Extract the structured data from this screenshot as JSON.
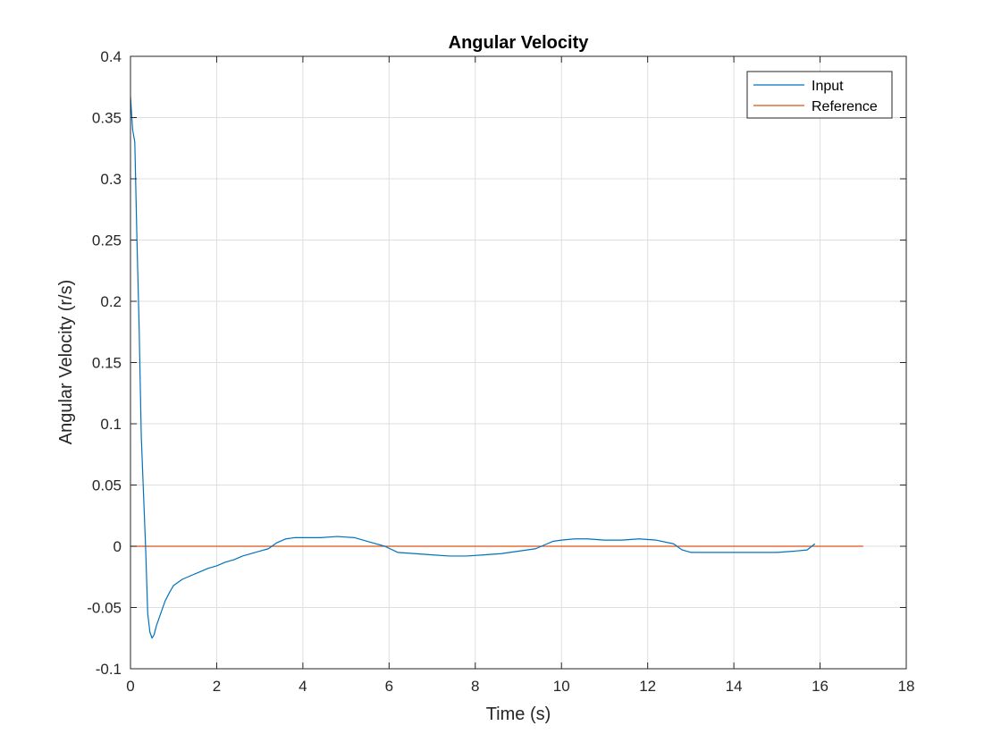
{
  "chart_data": {
    "type": "line",
    "title": "Angular Velocity",
    "xlabel": "Time (s)",
    "ylabel": "Angular Velocity (r/s)",
    "xlim": [
      0,
      18
    ],
    "ylim": [
      -0.1,
      0.4
    ],
    "xticks": [
      0,
      2,
      4,
      6,
      8,
      10,
      12,
      14,
      16,
      18
    ],
    "xtick_labels": [
      "0",
      "2",
      "4",
      "6",
      "8",
      "10",
      "12",
      "14",
      "16",
      "18"
    ],
    "yticks": [
      -0.1,
      -0.05,
      0,
      0.05,
      0.1,
      0.15,
      0.2,
      0.25,
      0.3,
      0.35,
      0.4
    ],
    "ytick_labels": [
      "-0.1",
      "-0.05",
      "0",
      "0.05",
      "0.1",
      "0.15",
      "0.2",
      "0.25",
      "0.3",
      "0.35",
      "0.4"
    ],
    "grid": true,
    "legend_position": "top-right",
    "series": [
      {
        "name": "Input",
        "color": "#0072BD",
        "x": [
          0,
          0.05,
          0.1,
          0.15,
          0.2,
          0.25,
          0.3,
          0.35,
          0.4,
          0.45,
          0.5,
          0.55,
          0.6,
          0.7,
          0.8,
          0.9,
          1.0,
          1.2,
          1.4,
          1.6,
          1.8,
          2.0,
          2.2,
          2.4,
          2.6,
          2.8,
          3.0,
          3.2,
          3.4,
          3.6,
          3.8,
          4.0,
          4.4,
          4.8,
          5.2,
          5.6,
          5.9,
          6.2,
          6.6,
          7.0,
          7.4,
          7.8,
          8.2,
          8.6,
          9.0,
          9.4,
          9.6,
          9.8,
          10.0,
          10.3,
          10.6,
          11.0,
          11.4,
          11.8,
          12.2,
          12.6,
          12.8,
          13.0,
          13.4,
          13.8,
          14.2,
          14.6,
          15.0,
          15.4,
          15.7,
          15.88
        ],
        "y": [
          0.367,
          0.34,
          0.33,
          0.25,
          0.18,
          0.09,
          0.045,
          0.0,
          -0.055,
          -0.07,
          -0.075,
          -0.072,
          -0.065,
          -0.055,
          -0.045,
          -0.038,
          -0.032,
          -0.027,
          -0.024,
          -0.021,
          -0.018,
          -0.016,
          -0.013,
          -0.011,
          -0.008,
          -0.006,
          -0.004,
          -0.002,
          0.003,
          0.006,
          0.007,
          0.007,
          0.007,
          0.008,
          0.007,
          0.003,
          0.0,
          -0.005,
          -0.006,
          -0.007,
          -0.008,
          -0.008,
          -0.007,
          -0.006,
          -0.004,
          -0.002,
          0.001,
          0.004,
          0.005,
          0.006,
          0.006,
          0.005,
          0.005,
          0.006,
          0.005,
          0.002,
          -0.003,
          -0.005,
          -0.005,
          -0.005,
          -0.005,
          -0.005,
          -0.005,
          -0.004,
          -0.003,
          0.002
        ]
      },
      {
        "name": "Reference",
        "color": "#D95319",
        "x": [
          0,
          17
        ],
        "y": [
          0,
          0
        ]
      }
    ]
  }
}
